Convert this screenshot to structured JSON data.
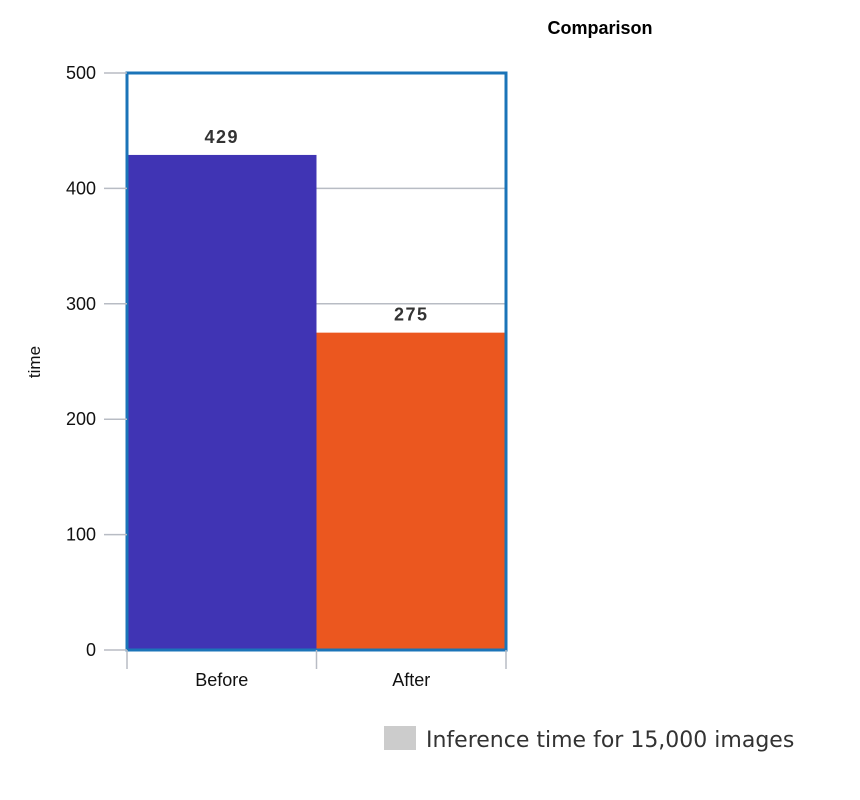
{
  "chart_data": {
    "type": "bar",
    "title": "Comparison",
    "xlabel": "",
    "ylabel": "time",
    "categories": [
      "Before",
      "After"
    ],
    "series": [
      {
        "name": "Inference time for 15,000 images",
        "values": [
          429,
          275
        ]
      }
    ],
    "data_labels": [
      "429",
      "275"
    ],
    "ylim": [
      0,
      500
    ],
    "yticks": [
      0,
      100,
      200,
      300,
      400,
      500
    ],
    "grid": true,
    "legend": "bottom-right",
    "colors": {
      "bars": [
        "#4034b4",
        "#eb571f"
      ],
      "legend_swatch": "#cccccc",
      "frame": "#1b74b8",
      "grid": "#b8bcc4"
    }
  }
}
